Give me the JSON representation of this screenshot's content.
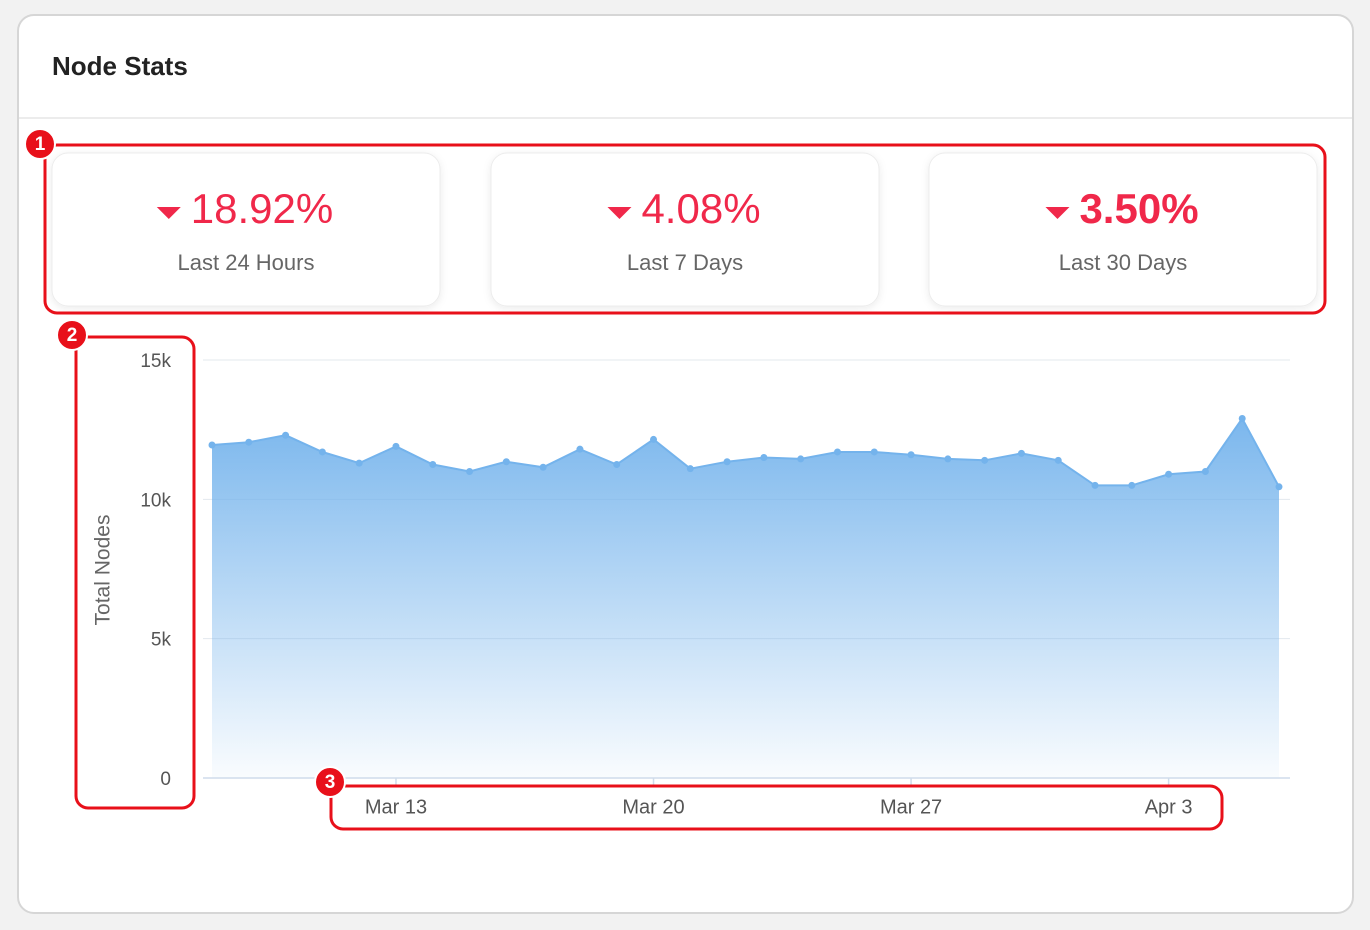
{
  "header": {
    "title": "Node Stats"
  },
  "stats": [
    {
      "value": "18.92%",
      "label": "Last 24 Hours"
    },
    {
      "value": "4.08%",
      "label": "Last 7 Days"
    },
    {
      "value": "3.50%",
      "label": "Last 30 Days"
    }
  ],
  "annotations": [
    "1",
    "2",
    "3"
  ],
  "chart_data": {
    "type": "area",
    "y_label": "Total Nodes",
    "x": [
      "Mar 8",
      "Mar 9",
      "Mar 10",
      "Mar 11",
      "Mar 12",
      "Mar 13",
      "Mar 14",
      "Mar 15",
      "Mar 16",
      "Mar 17",
      "Mar 18",
      "Mar 19",
      "Mar 20",
      "Mar 21",
      "Mar 22",
      "Mar 23",
      "Mar 24",
      "Mar 25",
      "Mar 26",
      "Mar 27",
      "Mar 28",
      "Mar 29",
      "Mar 30",
      "Mar 31",
      "Apr 1",
      "Apr 2",
      "Apr 3",
      "Apr 4",
      "Apr 5",
      "Apr 6"
    ],
    "values": [
      11950,
      12050,
      12300,
      11700,
      11300,
      11900,
      11250,
      11000,
      11350,
      11150,
      11800,
      11250,
      12150,
      11100,
      11350,
      11500,
      11450,
      11700,
      11700,
      11600,
      11450,
      11400,
      11650,
      11400,
      10500,
      10500,
      10900,
      11000,
      12900,
      10450
    ],
    "color": "#74b3ec",
    "ylim": [
      0,
      15000
    ],
    "yticks": [
      {
        "value": 0,
        "label": "0"
      },
      {
        "value": 5000,
        "label": "5k"
      },
      {
        "value": 10000,
        "label": "10k"
      },
      {
        "value": 15000,
        "label": "15k"
      }
    ],
    "xticks": [
      "Mar 13",
      "Mar 20",
      "Mar 27",
      "Apr 3"
    ],
    "grid": true
  }
}
